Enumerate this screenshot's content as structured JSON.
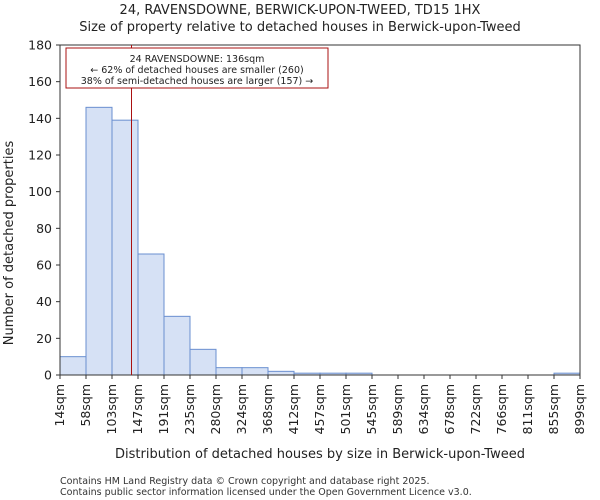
{
  "chart_data": {
    "type": "bar",
    "title_line1": "24, RAVENSDOWNE, BERWICK-UPON-TWEED, TD15 1HX",
    "title_line2": "Size of property relative to detached houses in Berwick-upon-Tweed",
    "xlabel": "Distribution of detached houses by size in Berwick-upon-Tweed",
    "ylabel": "Number of detached properties",
    "ylim": [
      0,
      180
    ],
    "yticks": [
      0,
      20,
      40,
      60,
      80,
      100,
      120,
      140,
      160,
      180
    ],
    "bin_edges_sqm": [
      14,
      58,
      103,
      147,
      191,
      235,
      280,
      324,
      368,
      412,
      457,
      501,
      545,
      589,
      634,
      678,
      722,
      766,
      811,
      855,
      899
    ],
    "x_tick_labels": [
      "14sqm",
      "58sqm",
      "103sqm",
      "147sqm",
      "191sqm",
      "235sqm",
      "280sqm",
      "324sqm",
      "368sqm",
      "412sqm",
      "457sqm",
      "501sqm",
      "545sqm",
      "589sqm",
      "634sqm",
      "678sqm",
      "722sqm",
      "766sqm",
      "811sqm",
      "855sqm",
      "899sqm"
    ],
    "values": [
      10,
      146,
      139,
      66,
      32,
      14,
      4,
      4,
      2,
      1,
      1,
      1,
      0,
      0,
      0,
      0,
      0,
      0,
      0,
      1
    ],
    "bar_color": "#d6e1f5",
    "bar_edge_color": "#6a8fd0",
    "marker": {
      "value_sqm": 136,
      "color": "#aa1111",
      "annotation": [
        "24 RAVENSDOWNE: 136sqm",
        "← 62% of detached houses are smaller (260)",
        "38% of semi-detached houses are larger (157) →"
      ]
    }
  },
  "footer": {
    "line1": "Contains HM Land Registry data © Crown copyright and database right 2025.",
    "line2": "Contains public sector information licensed under the Open Government Licence v3.0."
  }
}
